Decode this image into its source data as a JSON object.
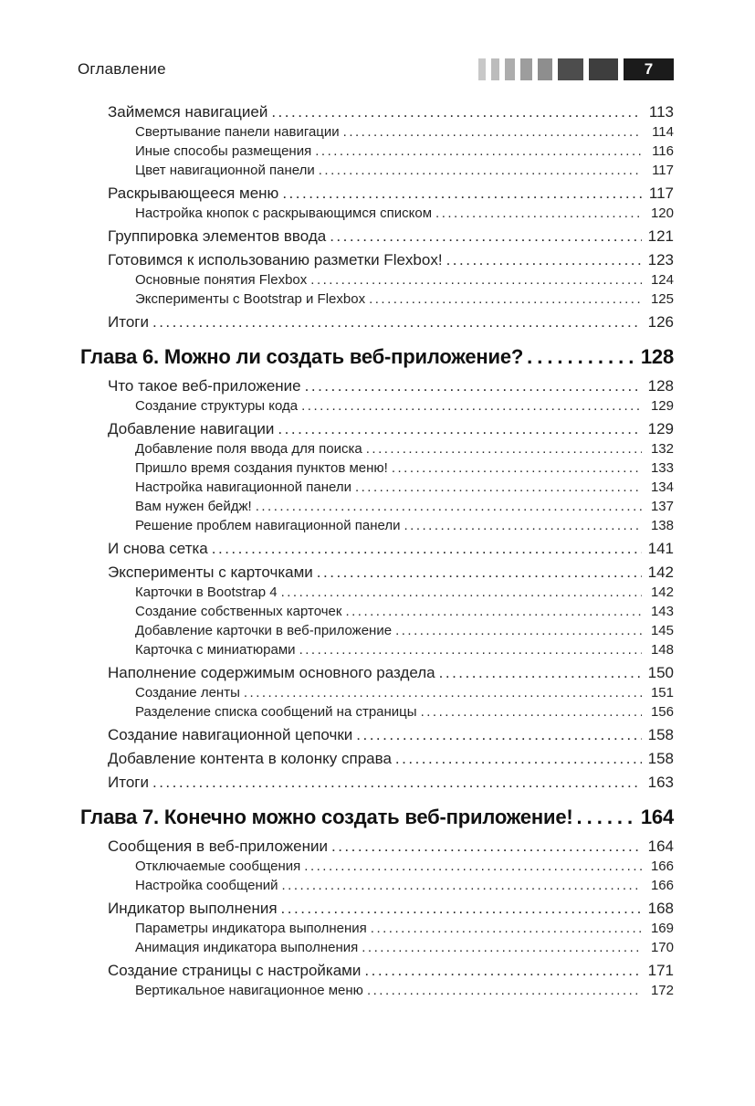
{
  "header": {
    "title": "Оглавление",
    "page_number": "7",
    "bar_segments": [
      {
        "width": 8,
        "color": "#c8c8c8"
      },
      {
        "width": 9,
        "color": "#bcbcbc"
      },
      {
        "width": 11,
        "color": "#adadad"
      },
      {
        "width": 13,
        "color": "#9d9d9d"
      },
      {
        "width": 16,
        "color": "#8e8e8e"
      },
      {
        "width": 28,
        "color": "#4d4d4d"
      },
      {
        "width": 32,
        "color": "#3e3e3e"
      }
    ],
    "badge_color": "#1b1b1b"
  },
  "colors": {
    "background": "#ffffff",
    "text": "#222222",
    "chapter_text": "#111111"
  },
  "toc": {
    "entries": [
      {
        "type": "entry",
        "level": 1,
        "title": "Займемся навигацией",
        "page": "113"
      },
      {
        "type": "entry",
        "level": 2,
        "title": "Свертывание панели навигации",
        "page": "114"
      },
      {
        "type": "entry",
        "level": 2,
        "title": "Иные способы размещения",
        "page": "116"
      },
      {
        "type": "entry",
        "level": 2,
        "title": "Цвет навигационной панели",
        "page": "117"
      },
      {
        "type": "entry",
        "level": 1,
        "title": "Раскрывающееся меню",
        "page": "117"
      },
      {
        "type": "entry",
        "level": 2,
        "title": "Настройка кнопок с раскрывающимся списком",
        "page": "120"
      },
      {
        "type": "entry",
        "level": 1,
        "title": "Группировка элементов ввода",
        "page": "121"
      },
      {
        "type": "entry",
        "level": 1,
        "title": "Готовимся к использованию разметки Flexbox!",
        "page": "123"
      },
      {
        "type": "entry",
        "level": 2,
        "title": "Основные понятия Flexbox",
        "page": "124"
      },
      {
        "type": "entry",
        "level": 2,
        "title": "Эксперименты с Bootstrap и Flexbox",
        "page": "125"
      },
      {
        "type": "entry",
        "level": 1,
        "title": "Итоги",
        "page": "126"
      },
      {
        "type": "chapter",
        "level": 0,
        "title": "Глава 6. Можно ли создать веб-приложение?",
        "page": "128"
      },
      {
        "type": "entry",
        "level": 1,
        "title": "Что такое веб-приложение",
        "page": "128"
      },
      {
        "type": "entry",
        "level": 2,
        "title": "Создание структуры кода",
        "page": "129"
      },
      {
        "type": "entry",
        "level": 1,
        "title": "Добавление навигации",
        "page": "129"
      },
      {
        "type": "entry",
        "level": 2,
        "title": "Добавление поля ввода для поиска",
        "page": "132"
      },
      {
        "type": "entry",
        "level": 2,
        "title": "Пришло время создания пунктов меню!",
        "page": "133"
      },
      {
        "type": "entry",
        "level": 2,
        "title": "Настройка навигационной панели",
        "page": "134"
      },
      {
        "type": "entry",
        "level": 2,
        "title": "Вам нужен бейдж!",
        "page": "137"
      },
      {
        "type": "entry",
        "level": 2,
        "title": "Решение проблем навигационной панели",
        "page": "138"
      },
      {
        "type": "entry",
        "level": 1,
        "title": "И снова сетка",
        "page": "141"
      },
      {
        "type": "entry",
        "level": 1,
        "title": "Эксперименты с карточками",
        "page": "142"
      },
      {
        "type": "entry",
        "level": 2,
        "title": "Карточки в Bootstrap 4",
        "page": "142"
      },
      {
        "type": "entry",
        "level": 2,
        "title": "Создание собственных карточек",
        "page": "143"
      },
      {
        "type": "entry",
        "level": 2,
        "title": "Добавление карточки в веб-приложение",
        "page": "145"
      },
      {
        "type": "entry",
        "level": 2,
        "title": "Карточка с миниатюрами",
        "page": "148"
      },
      {
        "type": "entry",
        "level": 1,
        "title": "Наполнение содержимым основного раздела",
        "page": "150"
      },
      {
        "type": "entry",
        "level": 2,
        "title": "Создание ленты",
        "page": "151"
      },
      {
        "type": "entry",
        "level": 2,
        "title": "Разделение списка сообщений на страницы",
        "page": "156"
      },
      {
        "type": "entry",
        "level": 1,
        "title": "Создание навигационной цепочки",
        "page": "158"
      },
      {
        "type": "entry",
        "level": 1,
        "title": "Добавление контента в колонку справа",
        "page": "158"
      },
      {
        "type": "entry",
        "level": 1,
        "title": "Итоги",
        "page": "163"
      },
      {
        "type": "chapter",
        "level": 0,
        "title": "Глава 7. Конечно можно создать веб-приложение!",
        "page": "164"
      },
      {
        "type": "entry",
        "level": 1,
        "title": "Сообщения в веб-приложении",
        "page": "164"
      },
      {
        "type": "entry",
        "level": 2,
        "title": "Отключаемые сообщения",
        "page": "166"
      },
      {
        "type": "entry",
        "level": 2,
        "title": "Настройка сообщений",
        "page": "166"
      },
      {
        "type": "entry",
        "level": 1,
        "title": "Индикатор выполнения",
        "page": "168"
      },
      {
        "type": "entry",
        "level": 2,
        "title": "Параметры индикатора выполнения",
        "page": "169"
      },
      {
        "type": "entry",
        "level": 2,
        "title": "Анимация индикатора выполнения",
        "page": "170"
      },
      {
        "type": "entry",
        "level": 1,
        "title": "Создание страницы с настройками",
        "page": "171"
      },
      {
        "type": "entry",
        "level": 2,
        "title": "Вертикальное навигационное меню",
        "page": "172"
      }
    ]
  }
}
